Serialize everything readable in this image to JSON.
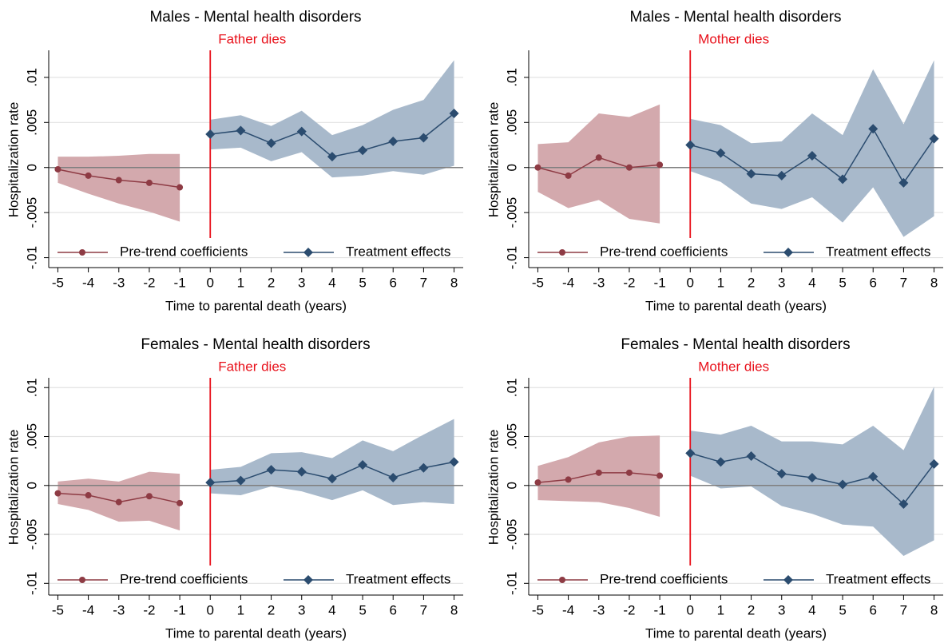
{
  "chart_data": [
    {
      "type": "line",
      "title": "Males - Mental health disorders",
      "x_label": "Time to parental death (years)",
      "y_label": "Hospitalization rate",
      "annotation": {
        "text": "Father dies",
        "x": 0,
        "color": "#e8101a"
      },
      "hline": 0,
      "grid": true,
      "legend": "bottom",
      "xlim": [
        -5.3,
        8.3
      ],
      "xticks": [
        -5,
        -4,
        -3,
        -2,
        -1,
        0,
        1,
        2,
        3,
        4,
        5,
        6,
        7,
        8
      ],
      "ylim": [
        -0.0111,
        0.013
      ],
      "yticks": [
        {
          "value": -0.01,
          "label": "-.01"
        },
        {
          "value": -0.005,
          "label": "-.005"
        },
        0,
        {
          "value": 0.005,
          "label": ".005"
        },
        {
          "value": 0.01,
          "label": ".01"
        }
      ],
      "series": [
        {
          "name": "Pre-trend coefficients",
          "color": "#8e3b44",
          "band_color": "#d3a9ad",
          "marker": "circle",
          "x": [
            -5,
            -4,
            -3,
            -2,
            -1
          ],
          "values": [
            -0.0002,
            -0.0009,
            -0.0014,
            -0.0017,
            -0.0022
          ],
          "lower": [
            -0.0017,
            -0.0029,
            -0.004,
            -0.0049,
            -0.006
          ],
          "upper": [
            0.0012,
            0.0012,
            0.0013,
            0.0015,
            0.0015
          ]
        },
        {
          "name": "Treatment effects",
          "color": "#2b4c6f",
          "band_color": "#a8b9cb",
          "marker": "diamond",
          "x": [
            0,
            1,
            2,
            3,
            4,
            5,
            6,
            7,
            8
          ],
          "values": [
            0.0037,
            0.0041,
            0.0027,
            0.004,
            0.0012,
            0.0019,
            0.0029,
            0.0033,
            0.006
          ],
          "lower": [
            0.002,
            0.0022,
            0.0007,
            0.0017,
            -0.0011,
            -0.0009,
            -0.0004,
            -0.0008,
            0.0002
          ],
          "upper": [
            0.0053,
            0.0058,
            0.0046,
            0.0063,
            0.0036,
            0.0047,
            0.0064,
            0.0075,
            0.0119
          ]
        }
      ]
    },
    {
      "type": "line",
      "title": "Males - Mental health disorders",
      "x_label": "Time to parental death (years)",
      "y_label": "Hospitalization rate",
      "annotation": {
        "text": "Mother dies",
        "x": 0,
        "color": "#e8101a"
      },
      "hline": 0,
      "grid": true,
      "legend": "bottom",
      "xlim": [
        -5.3,
        8.3
      ],
      "xticks": [
        -5,
        -4,
        -3,
        -2,
        -1,
        0,
        1,
        2,
        3,
        4,
        5,
        6,
        7,
        8
      ],
      "ylim": [
        -0.0111,
        0.013
      ],
      "yticks": [
        {
          "value": -0.01,
          "label": "-.01"
        },
        {
          "value": -0.005,
          "label": "-.005"
        },
        0,
        {
          "value": 0.005,
          "label": ".005"
        },
        {
          "value": 0.01,
          "label": ".01"
        }
      ],
      "series": [
        {
          "name": "Pre-trend coefficients",
          "color": "#8e3b44",
          "band_color": "#d3a9ad",
          "marker": "circle",
          "x": [
            -5,
            -4,
            -3,
            -2,
            -1
          ],
          "values": [
            0,
            -0.0009,
            0.0011,
            0,
            0.0003
          ],
          "lower": [
            -0.0027,
            -0.0045,
            -0.0036,
            -0.0057,
            -0.0062
          ],
          "upper": [
            0.0026,
            0.0028,
            0.006,
            0.0056,
            0.007
          ]
        },
        {
          "name": "Treatment effects",
          "color": "#2b4c6f",
          "band_color": "#a8b9cb",
          "marker": "diamond",
          "x": [
            0,
            1,
            2,
            3,
            4,
            5,
            6,
            7,
            8
          ],
          "values": [
            0.0025,
            0.0016,
            -0.0007,
            -0.0009,
            0.0013,
            -0.0013,
            0.0043,
            -0.0017,
            0.0032
          ],
          "lower": [
            -0.0004,
            -0.0016,
            -0.004,
            -0.0046,
            -0.0033,
            -0.0061,
            -0.0022,
            -0.0077,
            -0.0054
          ],
          "upper": [
            0.0054,
            0.0047,
            0.0027,
            0.0029,
            0.006,
            0.0036,
            0.0109,
            0.0048,
            0.0119
          ]
        }
      ]
    },
    {
      "type": "line",
      "title": "Females - Mental health disorders",
      "x_label": "Time to parental death (years)",
      "y_label": "Hospitalization rate",
      "annotation": {
        "text": "Father dies",
        "x": 0,
        "color": "#e8101a"
      },
      "hline": 0,
      "grid": true,
      "legend": "bottom",
      "xlim": [
        -5.3,
        8.3
      ],
      "xticks": [
        -5,
        -4,
        -3,
        -2,
        -1,
        0,
        1,
        2,
        3,
        4,
        5,
        6,
        7,
        8
      ],
      "ylim": [
        -0.0112,
        0.011
      ],
      "yticks": [
        {
          "value": -0.01,
          "label": "-.01"
        },
        {
          "value": -0.005,
          "label": "-.005"
        },
        0,
        {
          "value": 0.005,
          "label": ".005"
        },
        {
          "value": 0.01,
          "label": ".01"
        }
      ],
      "series": [
        {
          "name": "Pre-trend coefficients",
          "color": "#8e3b44",
          "band_color": "#d3a9ad",
          "marker": "circle",
          "x": [
            -5,
            -4,
            -3,
            -2,
            -1
          ],
          "values": [
            -0.0008,
            -0.001,
            -0.0017,
            -0.0011,
            -0.0018
          ],
          "lower": [
            -0.0019,
            -0.0025,
            -0.0037,
            -0.0036,
            -0.0046
          ],
          "upper": [
            0.0004,
            0.0007,
            0.0004,
            0.0014,
            0.0012
          ]
        },
        {
          "name": "Treatment effects",
          "color": "#2b4c6f",
          "band_color": "#a8b9cb",
          "marker": "diamond",
          "x": [
            0,
            1,
            2,
            3,
            4,
            5,
            6,
            7,
            8
          ],
          "values": [
            0.0003,
            0.0005,
            0.0016,
            0.0014,
            0.0007,
            0.0021,
            0.0008,
            0.0018,
            0.0024
          ],
          "lower": [
            -0.0008,
            -0.001,
            -0.0001,
            -0.0006,
            -0.0015,
            -0.0005,
            -0.002,
            -0.0017,
            -0.0019
          ],
          "upper": [
            0.0016,
            0.0019,
            0.0033,
            0.0034,
            0.0028,
            0.0046,
            0.0035,
            0.0052,
            0.0068
          ]
        }
      ]
    },
    {
      "type": "line",
      "title": "Females - Mental health disorders",
      "x_label": "Time to parental death (years)",
      "y_label": "Hospitalization rate",
      "annotation": {
        "text": "Mother dies",
        "x": 0,
        "color": "#e8101a"
      },
      "hline": 0,
      "grid": true,
      "legend": "bottom",
      "xlim": [
        -5.3,
        8.3
      ],
      "xticks": [
        -5,
        -4,
        -3,
        -2,
        -1,
        0,
        1,
        2,
        3,
        4,
        5,
        6,
        7,
        8
      ],
      "ylim": [
        -0.0112,
        0.011
      ],
      "yticks": [
        {
          "value": -0.01,
          "label": "-.01"
        },
        {
          "value": -0.005,
          "label": "-.005"
        },
        0,
        {
          "value": 0.005,
          "label": ".005"
        },
        {
          "value": 0.01,
          "label": ".01"
        }
      ],
      "series": [
        {
          "name": "Pre-trend coefficients",
          "color": "#8e3b44",
          "band_color": "#d3a9ad",
          "marker": "circle",
          "x": [
            -5,
            -4,
            -3,
            -2,
            -1
          ],
          "values": [
            0.0003,
            0.0006,
            0.0013,
            0.0013,
            0.001
          ],
          "lower": [
            -0.0015,
            -0.0016,
            -0.0017,
            -0.0023,
            -0.0032
          ],
          "upper": [
            0.002,
            0.0029,
            0.0044,
            0.005,
            0.0051
          ]
        },
        {
          "name": "Treatment effects",
          "color": "#2b4c6f",
          "band_color": "#a8b9cb",
          "marker": "diamond",
          "x": [
            0,
            1,
            2,
            3,
            4,
            5,
            6,
            7,
            8
          ],
          "values": [
            0.0033,
            0.0024,
            0.003,
            0.0012,
            0.0008,
            0.0001,
            0.0009,
            -0.0019,
            0.0022
          ],
          "lower": [
            0.001,
            -0.0003,
            -0.0001,
            -0.0021,
            -0.0029,
            -0.004,
            -0.0042,
            -0.0072,
            -0.0056
          ],
          "upper": [
            0.0056,
            0.0052,
            0.0061,
            0.0045,
            0.0045,
            0.0042,
            0.0061,
            0.0036,
            0.0101
          ]
        }
      ]
    }
  ]
}
